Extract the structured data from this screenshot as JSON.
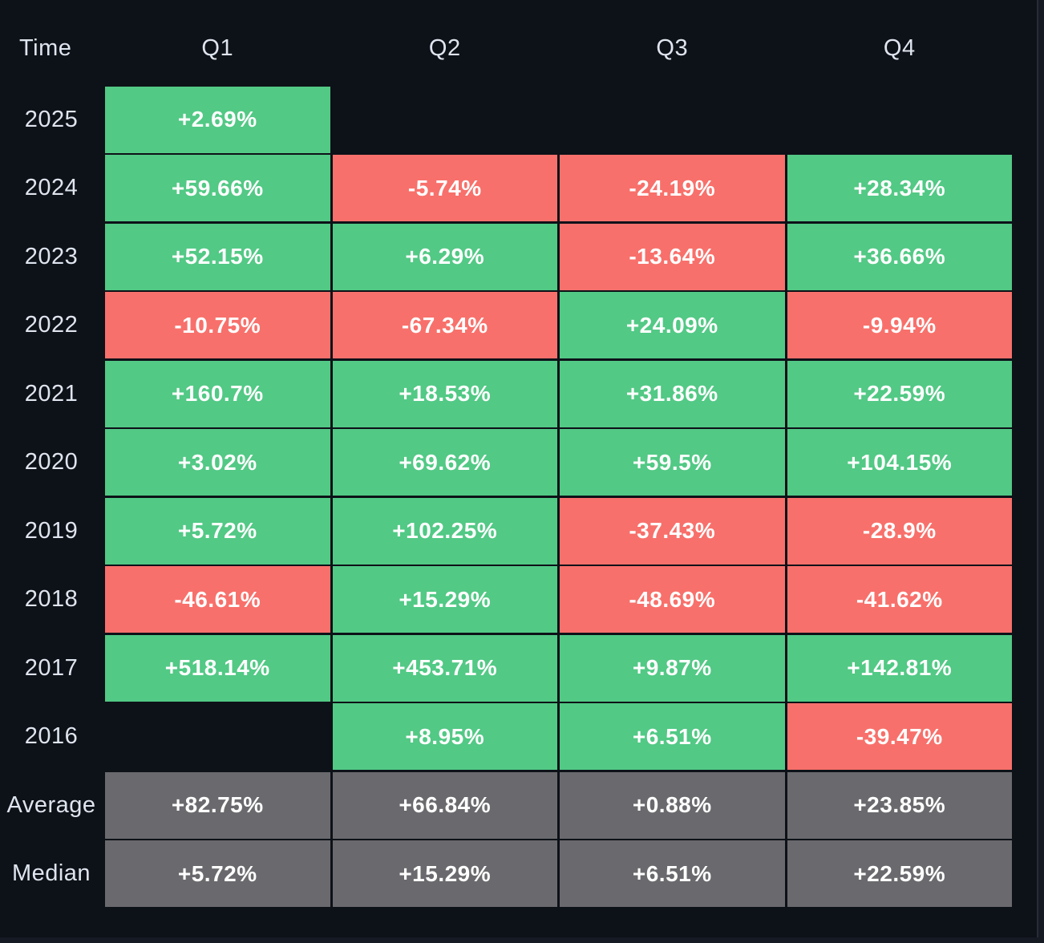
{
  "colors": {
    "background": "#0d1118",
    "positive": "#52c985",
    "negative": "#f8706b",
    "neutral": "#6a6a6e",
    "header_text": "#dfe5ee",
    "cell_text": "#ffffff"
  },
  "table": {
    "corner_label": "Time",
    "columns": [
      "Q1",
      "Q2",
      "Q3",
      "Q4"
    ],
    "rows": [
      {
        "label": "2025",
        "cells": [
          {
            "text": "+2.69%",
            "tone": "positive"
          },
          null,
          null,
          null
        ]
      },
      {
        "label": "2024",
        "cells": [
          {
            "text": "+59.66%",
            "tone": "positive"
          },
          {
            "text": "-5.74%",
            "tone": "negative"
          },
          {
            "text": "-24.19%",
            "tone": "negative"
          },
          {
            "text": "+28.34%",
            "tone": "positive"
          }
        ]
      },
      {
        "label": "2023",
        "cells": [
          {
            "text": "+52.15%",
            "tone": "positive"
          },
          {
            "text": "+6.29%",
            "tone": "positive"
          },
          {
            "text": "-13.64%",
            "tone": "negative"
          },
          {
            "text": "+36.66%",
            "tone": "positive"
          }
        ]
      },
      {
        "label": "2022",
        "cells": [
          {
            "text": "-10.75%",
            "tone": "negative"
          },
          {
            "text": "-67.34%",
            "tone": "negative"
          },
          {
            "text": "+24.09%",
            "tone": "positive"
          },
          {
            "text": "-9.94%",
            "tone": "negative"
          }
        ]
      },
      {
        "label": "2021",
        "cells": [
          {
            "text": "+160.7%",
            "tone": "positive"
          },
          {
            "text": "+18.53%",
            "tone": "positive"
          },
          {
            "text": "+31.86%",
            "tone": "positive"
          },
          {
            "text": "+22.59%",
            "tone": "positive"
          }
        ]
      },
      {
        "label": "2020",
        "cells": [
          {
            "text": "+3.02%",
            "tone": "positive"
          },
          {
            "text": "+69.62%",
            "tone": "positive"
          },
          {
            "text": "+59.5%",
            "tone": "positive"
          },
          {
            "text": "+104.15%",
            "tone": "positive"
          }
        ]
      },
      {
        "label": "2019",
        "cells": [
          {
            "text": "+5.72%",
            "tone": "positive"
          },
          {
            "text": "+102.25%",
            "tone": "positive"
          },
          {
            "text": "-37.43%",
            "tone": "negative"
          },
          {
            "text": "-28.9%",
            "tone": "negative"
          }
        ]
      },
      {
        "label": "2018",
        "cells": [
          {
            "text": "-46.61%",
            "tone": "negative"
          },
          {
            "text": "+15.29%",
            "tone": "positive"
          },
          {
            "text": "-48.69%",
            "tone": "negative"
          },
          {
            "text": "-41.62%",
            "tone": "negative"
          }
        ]
      },
      {
        "label": "2017",
        "cells": [
          {
            "text": "+518.14%",
            "tone": "positive"
          },
          {
            "text": "+453.71%",
            "tone": "positive"
          },
          {
            "text": "+9.87%",
            "tone": "positive"
          },
          {
            "text": "+142.81%",
            "tone": "positive"
          }
        ]
      },
      {
        "label": "2016",
        "cells": [
          null,
          {
            "text": "+8.95%",
            "tone": "positive"
          },
          {
            "text": "+6.51%",
            "tone": "positive"
          },
          {
            "text": "-39.47%",
            "tone": "negative"
          }
        ]
      },
      {
        "label": "Average",
        "cells": [
          {
            "text": "+82.75%",
            "tone": "neutral"
          },
          {
            "text": "+66.84%",
            "tone": "neutral"
          },
          {
            "text": "+0.88%",
            "tone": "neutral"
          },
          {
            "text": "+23.85%",
            "tone": "neutral"
          }
        ]
      },
      {
        "label": "Median",
        "cells": [
          {
            "text": "+5.72%",
            "tone": "neutral"
          },
          {
            "text": "+15.29%",
            "tone": "neutral"
          },
          {
            "text": "+6.51%",
            "tone": "neutral"
          },
          {
            "text": "+22.59%",
            "tone": "neutral"
          }
        ]
      }
    ]
  },
  "chart_data": {
    "type": "heatmap",
    "title": "",
    "x_categories": [
      "Q1",
      "Q2",
      "Q3",
      "Q4"
    ],
    "y_categories": [
      "2025",
      "2024",
      "2023",
      "2022",
      "2021",
      "2020",
      "2019",
      "2018",
      "2017",
      "2016",
      "Average",
      "Median"
    ],
    "values_pct": [
      [
        2.69,
        null,
        null,
        null
      ],
      [
        59.66,
        -5.74,
        -24.19,
        28.34
      ],
      [
        52.15,
        6.29,
        -13.64,
        36.66
      ],
      [
        -10.75,
        -67.34,
        24.09,
        -9.94
      ],
      [
        160.7,
        18.53,
        31.86,
        22.59
      ],
      [
        3.02,
        69.62,
        59.5,
        104.15
      ],
      [
        5.72,
        102.25,
        -37.43,
        -28.9
      ],
      [
        -46.61,
        15.29,
        -48.69,
        -41.62
      ],
      [
        518.14,
        453.71,
        9.87,
        142.81
      ],
      [
        null,
        8.95,
        6.51,
        -39.47
      ],
      [
        82.75,
        66.84,
        0.88,
        23.85
      ],
      [
        5.72,
        15.29,
        6.51,
        22.59
      ]
    ],
    "color_rule": "positive values green (#52c985), negative values red (#f8706b), Average/Median rows gray (#6a6a6e), missing values blank",
    "legend": "none",
    "grid": "off"
  }
}
